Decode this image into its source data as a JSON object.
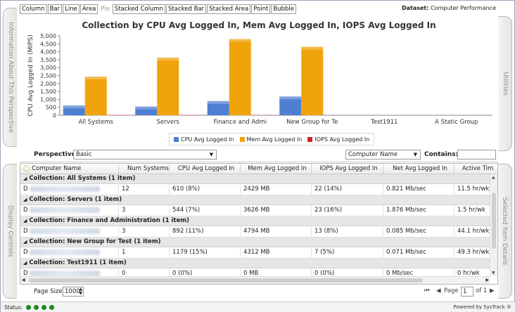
{
  "chart_types": [
    "Column",
    "Bar",
    "Line",
    "Area",
    "Pie",
    "Stacked Column",
    "Stacked Bar",
    "Stacked Area",
    "Point",
    "Bubble"
  ],
  "chart_types_disabled": [
    "Pie"
  ],
  "dataset": {
    "label": "Dataset:",
    "value": "Computer Performance"
  },
  "side_tabs": {
    "left_top": "Information About This Perspective",
    "left_bottom": "Display Controls",
    "right_top": "Utilities",
    "right_bottom": "Selected Item Details"
  },
  "chart_data": {
    "type": "bar",
    "title": "Collection by CPU Avg Logged In, Mem Avg Logged In, IOPS Avg Logged In",
    "ylabel": "CPU Avg Logged In (MIPS)",
    "xlabel": "",
    "ylim": [
      0,
      5000
    ],
    "yticks": [
      "0",
      "500",
      "1,000",
      "1,500",
      "2,000",
      "2,500",
      "3,000",
      "3,500",
      "4,000",
      "4,500",
      "5,000"
    ],
    "categories": [
      "All Systems",
      "Servers",
      "Finance and Admi",
      "New Group for Te",
      "Test1911",
      "A Static Group"
    ],
    "series": [
      {
        "name": "CPU Avg Logged In",
        "color": "#4f7fd0",
        "values": [
          610,
          544,
          892,
          1179,
          0,
          0
        ]
      },
      {
        "name": "Mem Avg Logged In",
        "color": "#f0a30a",
        "values": [
          2429,
          3626,
          4794,
          4312,
          0,
          0
        ]
      },
      {
        "name": "IOPS Avg Logged In",
        "color": "#d0202a",
        "values": [
          22,
          23,
          13,
          7,
          0,
          0
        ]
      }
    ],
    "legend_position": "bottom"
  },
  "toolbar": {
    "perspective_label": "Perspective",
    "perspective_value": "Basic",
    "filter_field": "Computer Name",
    "contains_label": "Contains:",
    "contains_value": ""
  },
  "grid": {
    "columns": [
      "Computer Name",
      "Num Systems",
      "CPU Avg Logged In",
      "Mem Avg Logged In",
      "IOPS Avg Logged In",
      "Net Avg Logged In",
      "Active Tim"
    ],
    "groups": [
      {
        "title": "Collection: All Systems (1 item)",
        "row": {
          "name": "D",
          "num": "12",
          "cpu": "610 (8%)",
          "mem": "2429 MB",
          "iops": "22 (14%)",
          "net": "0.821 Mb/sec",
          "active": "11.5 hr/wk"
        }
      },
      {
        "title": "Collection: Servers (1 item)",
        "row": {
          "name": "D",
          "num": "3",
          "cpu": "544 (7%)",
          "mem": "3626 MB",
          "iops": "23 (16%)",
          "net": "1.876 Mb/sec",
          "active": "1.5 hr/wk"
        }
      },
      {
        "title": "Collection: Finance and Administration (1 item)",
        "row": {
          "name": "D",
          "num": "3",
          "cpu": "892 (11%)",
          "mem": "4794 MB",
          "iops": "13 (8%)",
          "net": "0.085 Mb/sec",
          "active": "44.1 hr/wk"
        }
      },
      {
        "title": "Collection: New Group for Test (1 item)",
        "row": {
          "name": "D",
          "num": "1",
          "cpu": "1179 (15%)",
          "mem": "4312 MB",
          "iops": "7 (5%)",
          "net": "0.071 Mb/sec",
          "active": "49.3 hr/wk"
        }
      },
      {
        "title": "Collection: Test1911 (1 item)",
        "row": {
          "name": "D",
          "num": "0",
          "cpu": "0 (0%)",
          "mem": "0 MB",
          "iops": "0 (0%)",
          "net": "0 Mb/sec",
          "active": "0 hr/wk"
        }
      }
    ]
  },
  "pager": {
    "page_size_label": "Page Size",
    "page_size": "1000",
    "page_label": "Page",
    "page": "1",
    "of_label": "of 1"
  },
  "status": {
    "label": "Status:",
    "powered_by": "Powered by SysTrack"
  }
}
